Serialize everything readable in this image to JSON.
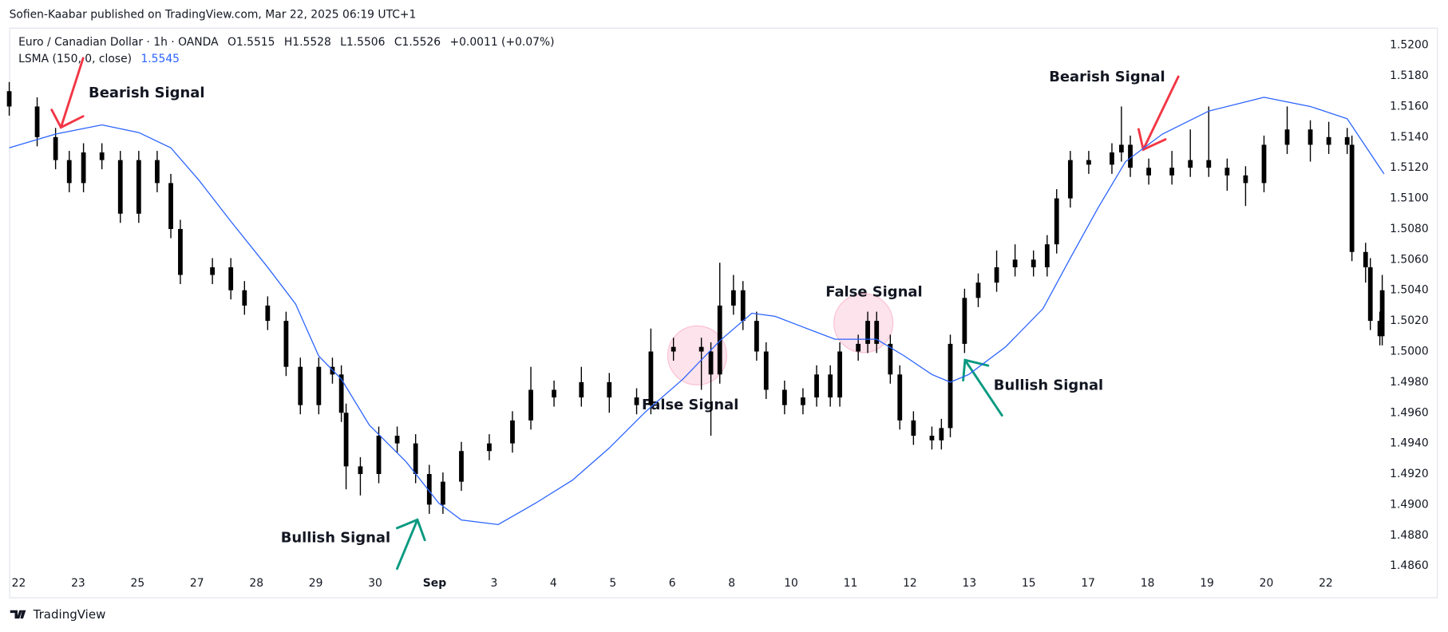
{
  "page": {
    "attribution": "Sofien-Kaabar published on TradingView.com, Mar 22, 2025 06:19 UTC+1",
    "logo_text": "TradingView"
  },
  "chart_data": {
    "type": "candlestick",
    "legend": {
      "symbol": "Euro / Canadian Dollar · 1h · OANDA",
      "ohlc": [
        {
          "label": "O",
          "value": 1.5515
        },
        {
          "label": "H",
          "value": 1.5528
        },
        {
          "label": "L",
          "value": 1.5506
        },
        {
          "label": "C",
          "value": 1.5526
        }
      ],
      "change": "+0.0011 (+0.07%)",
      "indicator": "LSMA (150, 0, close)",
      "indicator_value": 1.5545
    },
    "candle_color": "#000000",
    "x": [
      -0.16,
      0.31,
      0.62,
      0.85,
      1.09,
      1.4,
      1.71,
      2.02,
      2.33,
      2.56,
      2.72,
      3.26,
      3.57,
      3.8,
      4.19,
      4.5,
      4.74,
      5.05,
      5.28,
      5.43,
      5.51,
      5.75,
      6.06,
      6.37,
      6.68,
      6.91,
      7.14,
      7.45,
      7.92,
      8.31,
      8.62,
      9.01,
      9.47,
      9.94,
      10.4,
      10.64,
      11.02,
      11.49,
      11.65,
      11.8,
      12.03,
      12.19,
      12.42,
      12.58,
      12.89,
      13.2,
      13.43,
      13.66,
      13.82,
      14.13,
      14.29,
      14.44,
      14.67,
      14.83,
      15.06,
      15.37,
      15.53,
      15.68,
      15.92,
      16.15,
      16.46,
      16.77,
      17.08,
      17.31,
      17.47,
      17.7,
      18.01,
      18.4,
      18.56,
      18.71,
      19.02,
      19.41,
      19.72,
      20.03,
      20.34,
      20.65,
      20.96,
      21.35,
      21.74,
      22.05,
      22.36,
      22.44,
      22.67,
      22.75,
      22.91,
      22.95
    ],
    "open": [
      1.517,
      1.516,
      1.514,
      1.5125,
      1.511,
      1.513,
      1.5125,
      1.509,
      1.5125,
      1.511,
      1.508,
      1.505,
      1.5055,
      1.504,
      1.503,
      1.502,
      1.499,
      1.4965,
      1.499,
      1.4985,
      1.496,
      1.4925,
      1.492,
      1.4945,
      1.494,
      1.492,
      1.49,
      1.4915,
      1.4935,
      1.494,
      1.4955,
      1.4975,
      1.497,
      1.498,
      1.497,
      1.4965,
      1.5,
      1.5003,
      1.5,
      1.4985,
      1.503,
      1.504,
      1.502,
      1.5,
      1.4975,
      1.4965,
      1.497,
      1.4985,
      1.497,
      1.5,
      1.5005,
      1.502,
      1.5005,
      1.4985,
      1.4955,
      1.4945,
      1.4942,
      1.495,
      1.5005,
      1.5035,
      1.5045,
      1.5055,
      1.506,
      1.5055,
      1.507,
      1.51,
      1.5125,
      1.5122,
      1.513,
      1.5135,
      1.512,
      1.5115,
      1.512,
      1.5125,
      1.512,
      1.5115,
      1.511,
      1.5135,
      1.5145,
      1.5135,
      1.514,
      1.5135,
      1.5065,
      1.5055,
      1.502,
      1.501
    ],
    "high": [
      1.5176,
      1.5166,
      1.5146,
      1.5131,
      1.5136,
      1.5136,
      1.5131,
      1.5131,
      1.5131,
      1.5116,
      1.5086,
      1.5061,
      1.5061,
      1.5046,
      1.5036,
      1.5026,
      1.4996,
      1.4996,
      1.4996,
      1.4991,
      1.4966,
      1.4931,
      1.4951,
      1.4951,
      1.4946,
      1.4926,
      1.4921,
      1.4941,
      1.4946,
      1.4961,
      1.499,
      1.4981,
      1.499,
      1.4986,
      1.4976,
      1.5015,
      1.5009,
      1.5009,
      1.5006,
      1.5058,
      1.505,
      1.5046,
      1.5026,
      1.5006,
      1.4981,
      1.4976,
      1.4991,
      1.4991,
      1.5006,
      1.5011,
      1.5026,
      1.5026,
      1.5011,
      1.4991,
      1.4961,
      1.4951,
      1.4956,
      1.5011,
      1.5041,
      1.5051,
      1.5066,
      1.507,
      1.5066,
      1.5076,
      1.5106,
      1.5131,
      1.5131,
      1.5136,
      1.516,
      1.5141,
      1.5126,
      1.5131,
      1.5145,
      1.516,
      1.5126,
      1.5121,
      1.5141,
      1.516,
      1.5151,
      1.515,
      1.5146,
      1.5141,
      1.5071,
      1.5061,
      1.5026,
      1.505
    ],
    "low": [
      1.5154,
      1.5134,
      1.5119,
      1.5104,
      1.5104,
      1.5119,
      1.5084,
      1.5084,
      1.5104,
      1.5074,
      1.5044,
      1.5044,
      1.5034,
      1.5024,
      1.5014,
      1.4984,
      1.4959,
      1.4959,
      1.4979,
      1.4954,
      1.491,
      1.4906,
      1.4914,
      1.4934,
      1.4914,
      1.4894,
      1.4894,
      1.4909,
      1.4929,
      1.4934,
      1.4949,
      1.4964,
      1.4964,
      1.496,
      1.4959,
      1.4959,
      1.4994,
      1.4975,
      1.4945,
      1.4979,
      1.5024,
      1.5014,
      1.4994,
      1.4969,
      1.4959,
      1.4959,
      1.4964,
      1.4964,
      1.4964,
      1.4994,
      1.4999,
      1.4999,
      1.4979,
      1.4949,
      1.4939,
      1.4936,
      1.4936,
      1.4944,
      1.4999,
      1.5029,
      1.5039,
      1.5049,
      1.5049,
      1.5049,
      1.5064,
      1.5094,
      1.5116,
      1.5116,
      1.5124,
      1.5114,
      1.5109,
      1.5109,
      1.5114,
      1.5114,
      1.5105,
      1.5095,
      1.5104,
      1.5129,
      1.5124,
      1.5129,
      1.5129,
      1.5059,
      1.5045,
      1.5014,
      1.5004,
      1.5004
    ],
    "close": [
      1.516,
      1.514,
      1.5125,
      1.511,
      1.513,
      1.5125,
      1.509,
      1.5125,
      1.511,
      1.508,
      1.505,
      1.5055,
      1.504,
      1.503,
      1.502,
      1.499,
      1.4965,
      1.499,
      1.4985,
      1.496,
      1.4925,
      1.492,
      1.4945,
      1.494,
      1.492,
      1.49,
      1.4915,
      1.4935,
      1.494,
      1.4955,
      1.4975,
      1.497,
      1.498,
      1.497,
      1.4965,
      1.5,
      1.5003,
      1.5,
      1.4985,
      1.503,
      1.504,
      1.502,
      1.5,
      1.4975,
      1.4965,
      1.497,
      1.4985,
      1.497,
      1.5,
      1.5005,
      1.502,
      1.5005,
      1.4985,
      1.4955,
      1.4945,
      1.4942,
      1.495,
      1.5005,
      1.5035,
      1.5045,
      1.5055,
      1.506,
      1.5055,
      1.507,
      1.51,
      1.5125,
      1.5122,
      1.513,
      1.5135,
      1.512,
      1.5115,
      1.512,
      1.5125,
      1.512,
      1.5115,
      1.511,
      1.5135,
      1.5145,
      1.5135,
      1.514,
      1.5135,
      1.5065,
      1.5055,
      1.502,
      1.501,
      1.504
    ],
    "indicator_line": {
      "color": "#2962ff",
      "x": [
        -0.16,
        0.62,
        1.4,
        2.02,
        2.56,
        3.03,
        3.57,
        4.19,
        4.66,
        5.05,
        5.43,
        5.9,
        6.52,
        7.07,
        7.45,
        8.07,
        8.7,
        9.32,
        9.94,
        10.56,
        11.18,
        11.8,
        12.34,
        12.73,
        13.2,
        13.74,
        14.44,
        14.91,
        15.37,
        15.68,
        15.99,
        16.61,
        17.24,
        17.7,
        18.17,
        18.63,
        19.25,
        20.03,
        20.96,
        21.74,
        22.36,
        22.98
      ],
      "values": [
        1.5133,
        1.5142,
        1.5148,
        1.5143,
        1.5133,
        1.5112,
        1.5085,
        1.5055,
        1.5031,
        1.4997,
        1.4982,
        1.4952,
        1.4928,
        1.4901,
        1.489,
        1.4887,
        1.4901,
        1.4916,
        1.4937,
        1.4961,
        1.4982,
        1.5007,
        1.5025,
        1.5023,
        1.5016,
        1.5008,
        1.5008,
        1.4997,
        1.4985,
        1.498,
        1.4985,
        1.5003,
        1.5028,
        1.5061,
        1.5094,
        1.5124,
        1.5142,
        1.5157,
        1.5166,
        1.516,
        1.5152,
        1.5116
      ]
    },
    "xlim": [
      -0.16,
      23.0
    ],
    "ylim": [
      1.486,
      1.52
    ],
    "grid": false,
    "xticks": [
      {
        "value": 0,
        "label": "22"
      },
      {
        "value": 1,
        "label": "23"
      },
      {
        "value": 2,
        "label": "25"
      },
      {
        "value": 3,
        "label": "27"
      },
      {
        "value": 4,
        "label": "28"
      },
      {
        "value": 5,
        "label": "29"
      },
      {
        "value": 6,
        "label": "30"
      },
      {
        "value": 7,
        "label": "Sep"
      },
      {
        "value": 8,
        "label": "3"
      },
      {
        "value": 9,
        "label": "4"
      },
      {
        "value": 10,
        "label": "5"
      },
      {
        "value": 11,
        "label": "6"
      },
      {
        "value": 12,
        "label": "8"
      },
      {
        "value": 13,
        "label": "10"
      },
      {
        "value": 14,
        "label": "11"
      },
      {
        "value": 15,
        "label": "12"
      },
      {
        "value": 16,
        "label": "13"
      },
      {
        "value": 17,
        "label": "15"
      },
      {
        "value": 18,
        "label": "17"
      },
      {
        "value": 19,
        "label": "18"
      },
      {
        "value": 20,
        "label": "19"
      },
      {
        "value": 21,
        "label": "20"
      },
      {
        "value": 22,
        "label": "22"
      }
    ],
    "yticks": [
      {
        "value": 1.52,
        "label": "1.5200"
      },
      {
        "value": 1.518,
        "label": "1.5180"
      },
      {
        "value": 1.516,
        "label": "1.5160"
      },
      {
        "value": 1.514,
        "label": "1.5140"
      },
      {
        "value": 1.512,
        "label": "1.5120"
      },
      {
        "value": 1.51,
        "label": "1.5100"
      },
      {
        "value": 1.508,
        "label": "1.5080"
      },
      {
        "value": 1.506,
        "label": "1.5060"
      },
      {
        "value": 1.504,
        "label": "1.5040"
      },
      {
        "value": 1.502,
        "label": "1.5020"
      },
      {
        "value": 1.5,
        "label": "1.5000"
      },
      {
        "value": 1.498,
        "label": "1.4980"
      },
      {
        "value": 1.496,
        "label": "1.4960"
      },
      {
        "value": 1.494,
        "label": "1.4940"
      },
      {
        "value": 1.492,
        "label": "1.4920"
      },
      {
        "value": 1.49,
        "label": "1.4900"
      },
      {
        "value": 1.488,
        "label": "1.4880"
      },
      {
        "value": 1.486,
        "label": "1.4860"
      }
    ],
    "annotations": [
      "Bearish Signal",
      "Bearish Signal",
      "Bullish Signal",
      "Bullish Signal",
      "False Signal",
      "False Signal"
    ]
  }
}
